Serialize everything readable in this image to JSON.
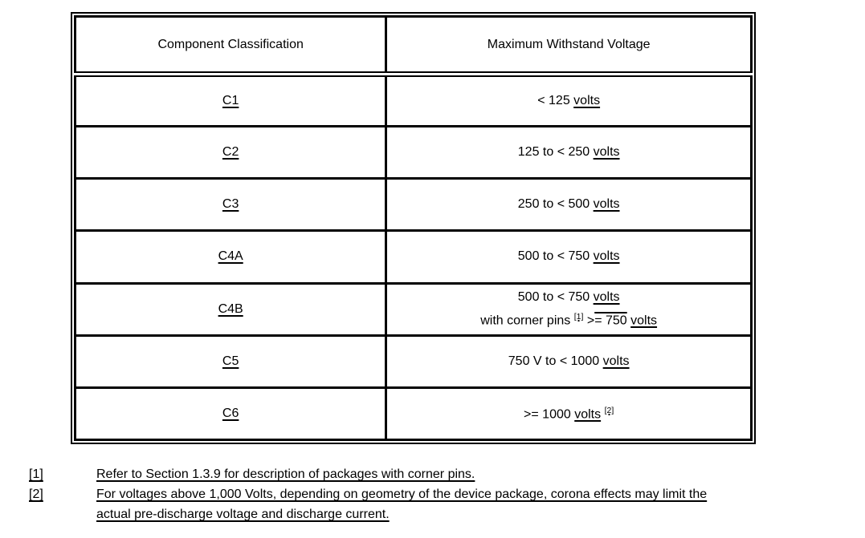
{
  "table": {
    "headers": [
      "Component Classification",
      "Maximum Withstand Voltage"
    ],
    "rows": [
      {
        "cls": "C1",
        "v_pre": "< 125 ",
        "v_volts": "volts"
      },
      {
        "cls": "C2",
        "v_pre": "125 to < 250 ",
        "v_volts": "volts"
      },
      {
        "cls": "C3",
        "v_pre": "250 to < 500 ",
        "v_volts": "volts"
      },
      {
        "cls": "C4A",
        "v_pre": "500 to < 750 ",
        "v_volts": "volts"
      },
      {
        "cls": "C4B",
        "v_pre": "500 to < 750 ",
        "v_volts": "volts",
        "v2_pre": "with corner pins ",
        "v2_sup": "[1]",
        "v2_gt": " >",
        "v2_ovl": "= 750",
        "v2_sp": " ",
        "v2_volts": "volts"
      },
      {
        "cls": "C5",
        "v_pre": "750 V to < 1000 ",
        "v_volts": "volts"
      },
      {
        "cls": "C6",
        "v_pre": ">= 1000 ",
        "v_volts": "volts",
        "v_sp": " ",
        "v_sup": "[2]"
      }
    ]
  },
  "footnotes": [
    {
      "marker": "[1]",
      "lines": [
        "Refer to Section 1.3.9 for description of packages with corner pins."
      ]
    },
    {
      "marker": "[2]",
      "lines": [
        "For voltages above 1,000 Volts, depending on geometry of the device package, corona effects may limit the",
        "actual pre-discharge voltage and discharge current."
      ]
    }
  ]
}
